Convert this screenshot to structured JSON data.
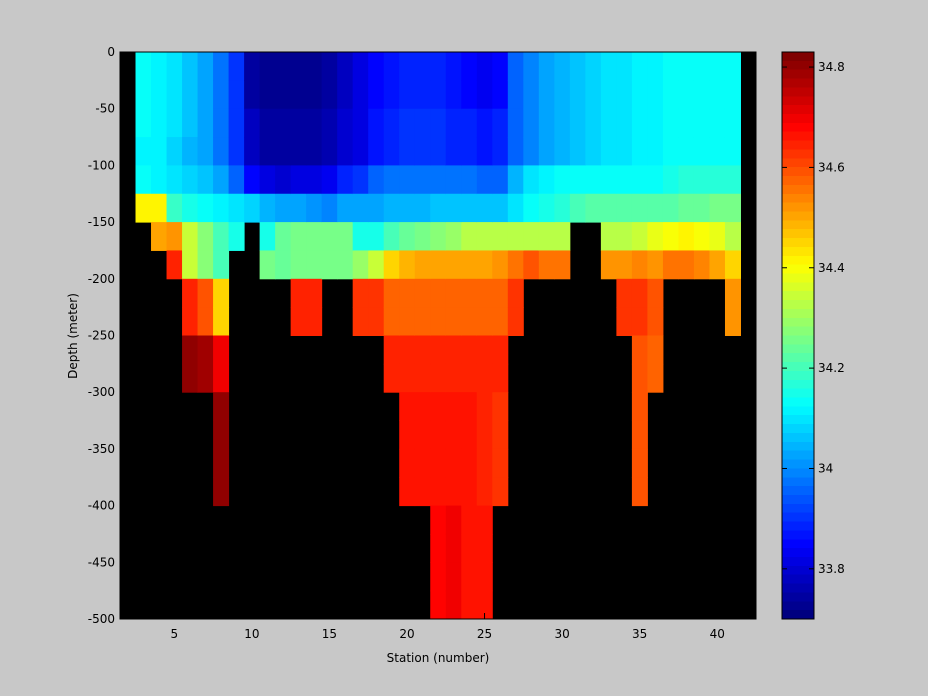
{
  "chart_data": {
    "type": "heatmap",
    "xlabel": "Station (number)",
    "ylabel": "Depth (meter)",
    "xlim": [
      1.5,
      42.5
    ],
    "ylim": [
      -500,
      0
    ],
    "xticks": [
      5,
      10,
      15,
      20,
      25,
      30,
      35,
      40
    ],
    "yticks": [
      0,
      -50,
      -100,
      -150,
      -200,
      -250,
      -300,
      -350,
      -400,
      -450,
      -500
    ],
    "colorbar": {
      "colormap": "jet",
      "clim": [
        33.7,
        34.83
      ],
      "ticks": [
        33.8,
        34,
        34.2,
        34.4,
        34.6,
        34.8
      ],
      "tick_labels": [
        "33.8",
        "34",
        "34.2",
        "34.4",
        "34.6",
        "34.8"
      ]
    },
    "nan_color": "#000000",
    "stations": [
      2,
      3,
      4,
      5,
      6,
      7,
      8,
      9,
      10,
      11,
      12,
      13,
      14,
      15,
      16,
      17,
      18,
      19,
      20,
      21,
      22,
      23,
      24,
      25,
      26,
      27,
      28,
      29,
      30,
      31,
      32,
      33,
      34,
      35,
      36,
      37,
      38,
      39,
      40,
      41,
      42
    ],
    "depths": [
      0,
      -25,
      -50,
      -75,
      -100,
      -125,
      -150,
      -175,
      -200,
      -225,
      -250,
      -275,
      -300,
      -325,
      -350,
      -375,
      -400,
      -425,
      -450,
      -475,
      -500
    ],
    "salinity": [
      [
        null,
        null,
        null,
        null,
        null,
        null,
        null,
        null,
        null,
        null,
        null,
        null,
        null,
        null,
        null,
        null,
        null,
        null,
        null,
        null,
        null
      ],
      [
        34.13,
        34.13,
        34.13,
        34.12,
        34.13,
        34.42,
        null,
        null,
        null,
        null,
        null,
        null,
        null,
        null,
        null,
        null,
        null,
        null,
        null,
        null,
        null
      ],
      [
        34.12,
        34.12,
        34.12,
        34.11,
        34.12,
        34.42,
        34.5,
        null,
        null,
        null,
        null,
        null,
        null,
        null,
        null,
        null,
        null,
        null,
        null,
        null,
        null
      ],
      [
        34.1,
        34.1,
        34.1,
        34.08,
        34.1,
        34.18,
        34.52,
        34.64,
        null,
        null,
        null,
        null,
        null,
        null,
        null,
        null,
        null,
        null,
        null,
        null,
        null
      ],
      [
        34.07,
        34.07,
        34.07,
        34.05,
        34.08,
        34.15,
        34.35,
        34.35,
        34.65,
        34.65,
        34.8,
        34.8,
        null,
        null,
        null,
        null,
        null,
        null,
        null,
        null,
        null
      ],
      [
        34.03,
        34.03,
        34.03,
        34.02,
        34.06,
        34.13,
        34.28,
        34.28,
        34.6,
        34.6,
        34.78,
        34.78,
        null,
        null,
        null,
        null,
        null,
        null,
        null,
        null,
        null
      ],
      [
        33.97,
        33.97,
        33.97,
        33.97,
        34.02,
        34.12,
        34.2,
        34.2,
        34.45,
        34.45,
        34.7,
        34.7,
        34.8,
        34.8,
        34.8,
        34.8,
        null,
        null,
        null,
        null,
        null
      ],
      [
        33.9,
        33.9,
        33.9,
        33.9,
        33.95,
        34.1,
        34.15,
        null,
        null,
        null,
        null,
        null,
        null,
        null,
        null,
        null,
        null,
        null,
        null,
        null,
        null
      ],
      [
        33.75,
        33.75,
        33.78,
        33.78,
        33.85,
        34.08,
        null,
        null,
        null,
        null,
        null,
        null,
        null,
        null,
        null,
        null,
        null,
        null,
        null,
        null,
        null
      ],
      [
        33.73,
        33.73,
        33.75,
        33.75,
        33.82,
        34.05,
        34.15,
        34.25,
        null,
        null,
        null,
        null,
        null,
        null,
        null,
        null,
        null,
        null,
        null,
        null,
        null
      ],
      [
        33.72,
        33.72,
        33.74,
        33.74,
        33.8,
        34.03,
        34.23,
        34.23,
        null,
        null,
        null,
        null,
        null,
        null,
        null,
        null,
        null,
        null,
        null,
        null,
        null
      ],
      [
        33.72,
        33.72,
        33.74,
        33.74,
        33.81,
        34.02,
        34.25,
        34.25,
        34.65,
        34.65,
        null,
        null,
        null,
        null,
        null,
        null,
        null,
        null,
        null,
        null,
        null
      ],
      [
        33.73,
        33.73,
        33.75,
        33.75,
        33.82,
        34.01,
        34.25,
        34.25,
        34.65,
        34.65,
        null,
        null,
        null,
        null,
        null,
        null,
        null,
        null,
        null,
        null,
        null
      ],
      [
        33.75,
        33.75,
        33.77,
        33.77,
        33.84,
        34.0,
        34.25,
        34.25,
        null,
        null,
        null,
        null,
        null,
        null,
        null,
        null,
        null,
        null,
        null,
        null,
        null
      ],
      [
        33.78,
        33.78,
        33.8,
        33.8,
        33.88,
        34.02,
        34.25,
        34.25,
        null,
        null,
        null,
        null,
        null,
        null,
        null,
        null,
        null,
        null,
        null,
        null,
        null
      ],
      [
        33.82,
        33.82,
        33.82,
        33.82,
        33.9,
        34.03,
        34.15,
        34.3,
        34.62,
        34.62,
        null,
        null,
        null,
        null,
        null,
        null,
        null,
        null,
        null,
        null,
        null
      ],
      [
        33.85,
        33.85,
        33.86,
        33.86,
        33.95,
        34.02,
        34.15,
        34.35,
        34.62,
        34.62,
        null,
        null,
        null,
        null,
        null,
        null,
        null,
        null,
        null,
        null,
        null
      ],
      [
        33.87,
        33.87,
        33.88,
        33.88,
        33.97,
        34.05,
        34.2,
        34.45,
        34.57,
        34.57,
        34.64,
        34.64,
        null,
        null,
        null,
        null,
        null,
        null,
        null,
        null,
        null
      ],
      [
        33.88,
        33.88,
        33.9,
        33.9,
        33.98,
        34.05,
        34.23,
        34.48,
        34.57,
        34.57,
        34.64,
        34.64,
        34.66,
        34.66,
        34.66,
        34.66,
        null,
        null,
        null,
        null,
        null
      ],
      [
        33.88,
        33.88,
        33.9,
        33.9,
        33.98,
        34.05,
        34.25,
        34.5,
        34.57,
        34.57,
        34.64,
        34.64,
        34.67,
        34.67,
        34.67,
        34.67,
        null,
        null,
        null,
        null,
        null
      ],
      [
        33.88,
        33.88,
        33.9,
        33.9,
        33.98,
        34.06,
        34.28,
        34.5,
        34.57,
        34.57,
        34.64,
        34.64,
        34.67,
        34.67,
        34.67,
        34.67,
        34.68,
        34.68,
        34.68,
        34.68,
        null
      ],
      [
        33.87,
        33.87,
        33.89,
        33.89,
        33.98,
        34.07,
        34.3,
        34.5,
        34.57,
        34.57,
        34.64,
        34.64,
        34.66,
        34.66,
        34.66,
        34.66,
        34.7,
        34.7,
        34.7,
        34.7,
        null
      ],
      [
        33.85,
        33.85,
        33.88,
        33.88,
        33.97,
        34.07,
        34.32,
        34.5,
        34.57,
        34.57,
        34.64,
        34.64,
        34.66,
        34.66,
        34.66,
        34.66,
        34.66,
        34.66,
        34.66,
        34.66,
        null
      ],
      [
        33.83,
        33.83,
        33.87,
        33.87,
        33.96,
        34.06,
        34.33,
        34.5,
        34.57,
        34.57,
        34.64,
        34.64,
        34.64,
        34.64,
        34.64,
        34.64,
        34.66,
        34.66,
        34.66,
        34.66,
        null
      ],
      [
        33.85,
        33.85,
        33.88,
        33.88,
        33.96,
        34.06,
        34.33,
        34.52,
        34.57,
        34.57,
        34.64,
        34.64,
        34.62,
        34.62,
        34.62,
        34.62,
        null,
        null,
        null,
        null,
        null
      ],
      [
        33.95,
        33.95,
        33.96,
        33.96,
        34.05,
        34.1,
        34.33,
        34.55,
        34.62,
        34.62,
        null,
        null,
        null,
        null,
        null,
        null,
        null,
        null,
        null,
        null,
        null
      ],
      [
        34.0,
        34.0,
        34.0,
        34.0,
        34.1,
        34.13,
        34.33,
        34.6,
        null,
        null,
        null,
        null,
        null,
        null,
        null,
        null,
        null,
        null,
        null,
        null,
        null
      ],
      [
        34.03,
        34.03,
        34.03,
        34.03,
        34.12,
        34.15,
        34.33,
        34.55,
        null,
        null,
        null,
        null,
        null,
        null,
        null,
        null,
        null,
        null,
        null,
        null,
        null
      ],
      [
        34.05,
        34.05,
        34.05,
        34.05,
        34.13,
        34.17,
        34.33,
        34.55,
        null,
        null,
        null,
        null,
        null,
        null,
        null,
        null,
        null,
        null,
        null,
        null,
        null
      ],
      [
        34.07,
        34.07,
        34.07,
        34.07,
        34.13,
        34.2,
        null,
        null,
        null,
        null,
        null,
        null,
        null,
        null,
        null,
        null,
        null,
        null,
        null,
        null,
        null
      ],
      [
        34.08,
        34.08,
        34.08,
        34.08,
        34.13,
        34.22,
        null,
        null,
        null,
        null,
        null,
        null,
        null,
        null,
        null,
        null,
        null,
        null,
        null,
        null,
        null
      ],
      [
        34.09,
        34.09,
        34.09,
        34.09,
        34.13,
        34.22,
        34.33,
        34.52,
        null,
        null,
        null,
        null,
        null,
        null,
        null,
        null,
        null,
        null,
        null,
        null,
        null
      ],
      [
        34.1,
        34.1,
        34.1,
        34.1,
        34.13,
        34.22,
        34.33,
        34.52,
        34.62,
        34.62,
        null,
        null,
        null,
        null,
        null,
        null,
        null,
        null,
        null,
        null,
        null
      ],
      [
        34.11,
        34.11,
        34.11,
        34.11,
        34.13,
        34.22,
        34.35,
        34.53,
        34.62,
        34.62,
        34.6,
        34.6,
        34.6,
        34.6,
        34.6,
        34.6,
        null,
        null,
        null,
        null,
        null
      ],
      [
        34.12,
        34.12,
        34.12,
        34.12,
        34.14,
        34.22,
        34.38,
        34.52,
        34.6,
        34.6,
        34.58,
        34.58,
        null,
        null,
        null,
        null,
        null,
        null,
        null,
        null,
        null
      ],
      [
        34.13,
        34.13,
        34.13,
        34.13,
        34.15,
        34.22,
        34.4,
        34.56,
        null,
        null,
        null,
        null,
        null,
        null,
        null,
        null,
        null,
        null,
        null,
        null,
        null
      ],
      [
        34.13,
        34.13,
        34.13,
        34.13,
        34.16,
        34.23,
        34.42,
        34.56,
        null,
        null,
        null,
        null,
        null,
        null,
        null,
        null,
        null,
        null,
        null,
        null,
        null
      ],
      [
        34.13,
        34.13,
        34.13,
        34.13,
        34.17,
        34.24,
        34.4,
        34.54,
        null,
        null,
        null,
        null,
        null,
        null,
        null,
        null,
        null,
        null,
        null,
        null,
        null
      ],
      [
        34.13,
        34.13,
        34.13,
        34.13,
        34.17,
        34.25,
        34.38,
        34.5,
        null,
        null,
        null,
        null,
        null,
        null,
        null,
        null,
        null,
        null,
        null,
        null,
        null
      ],
      [
        34.13,
        34.13,
        34.13,
        34.13,
        34.16,
        34.25,
        34.33,
        34.45,
        34.52,
        34.52,
        null,
        null,
        null,
        null,
        null,
        null,
        null,
        null,
        null,
        null,
        null
      ],
      [
        34.13,
        34.13,
        34.13,
        34.13,
        34.15,
        34.22,
        34.45,
        34.45,
        34.5,
        34.5,
        34.62,
        34.62,
        34.62,
        34.62,
        34.62,
        34.62,
        null,
        null,
        null,
        null,
        null
      ]
    ]
  }
}
